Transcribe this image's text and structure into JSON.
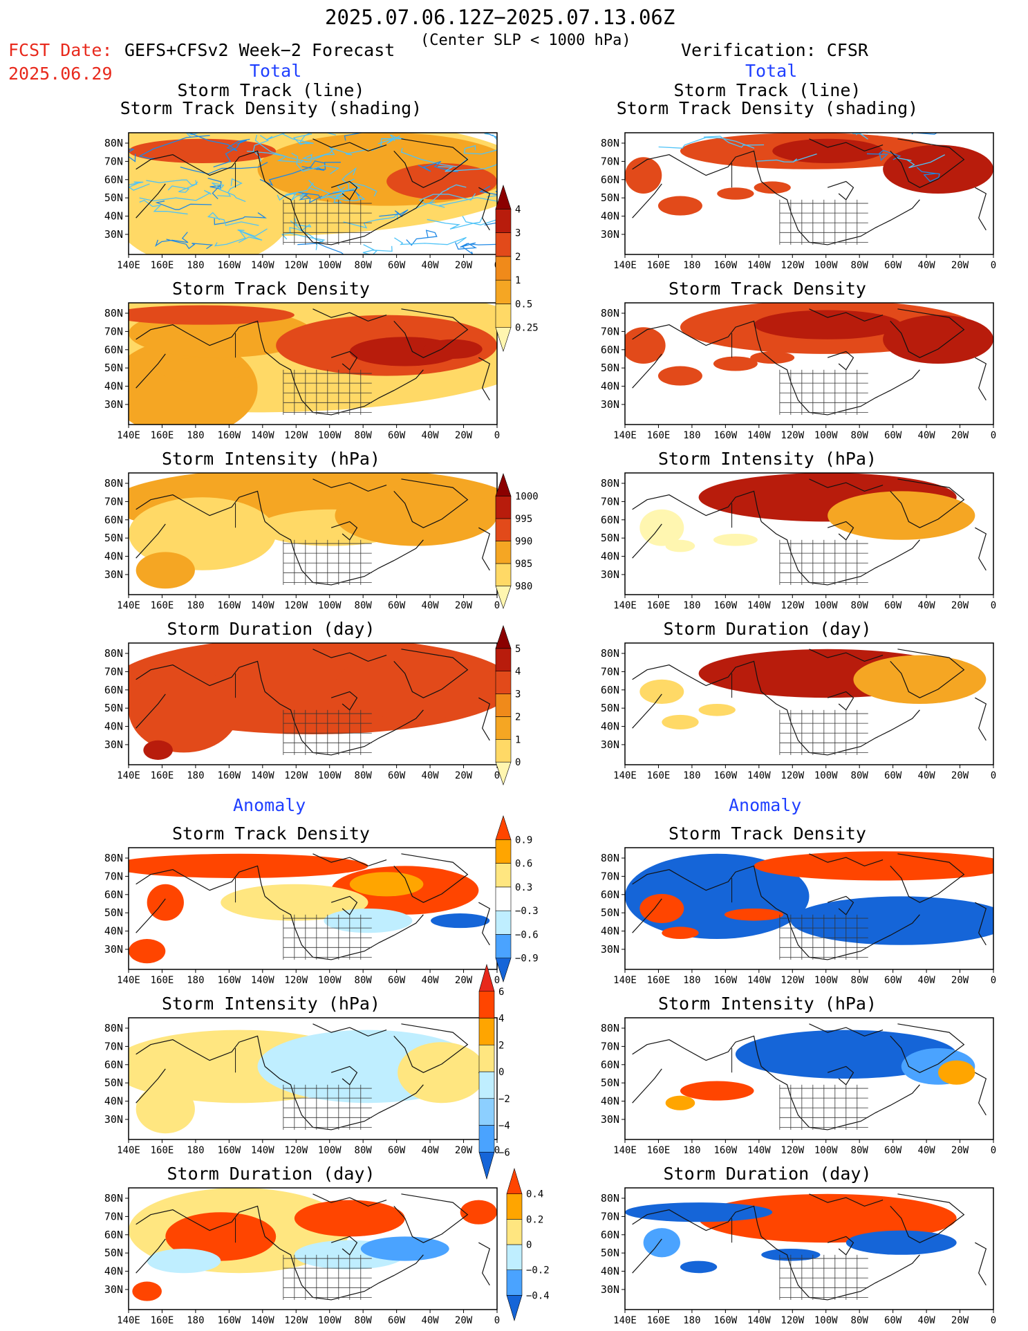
{
  "header": {
    "period": "2025.07.06.12Z−2025.07.13.06Z",
    "fcst_label": "FCST Date:",
    "fcst_date": "2025.06.29",
    "model": "GEFS+CFSv2 Week−2 Forecast",
    "criterion": "(Center SLP < 1000 hPa)",
    "verification": "Verification: CFSR"
  },
  "sections": {
    "total": "Total",
    "anomaly": "Anomaly"
  },
  "axes": {
    "lon_labels": [
      "140E",
      "160E",
      "180",
      "160W",
      "140W",
      "120W",
      "100W",
      "80W",
      "60W",
      "40W",
      "20W",
      "0"
    ],
    "lat_labels": [
      "80N",
      "70N",
      "60N",
      "50N",
      "40N",
      "30N"
    ]
  },
  "panels": {
    "left": [
      {
        "title": "Storm Track (line)\nStorm Track Density (shading)"
      },
      {
        "title": "Storm Track Density"
      },
      {
        "title": "Storm Intensity (hPa)"
      },
      {
        "title": "Storm Duration (day)"
      },
      {
        "title": "Storm Track Density"
      },
      {
        "title": "Storm Intensity (hPa)"
      },
      {
        "title": "Storm Duration (day)"
      }
    ],
    "right": [
      {
        "title": "Storm Track (line)\nStorm Track Density (shading)"
      },
      {
        "title": "Storm Track Density"
      },
      {
        "title": "Storm Intensity (hPa)"
      },
      {
        "title": "Storm Duration (day)"
      },
      {
        "title": "Storm Track Density"
      },
      {
        "title": "Storm Intensity (hPa)"
      },
      {
        "title": "Storm Duration (day)"
      }
    ]
  },
  "colorbars": [
    {
      "name": "density-total",
      "labels": [
        "4",
        "3",
        "2",
        "1",
        "0.5",
        "0.25"
      ],
      "colors": [
        "#fff6b0",
        "#ffd966",
        "#f5a623",
        "#f08a1a",
        "#e24a1a",
        "#b81c0c",
        "#8b0000"
      ]
    },
    {
      "name": "intensity-total",
      "labels": [
        "1000",
        "995",
        "990",
        "985",
        "980"
      ],
      "colors": [
        "#fff6b0",
        "#ffd966",
        "#f5a623",
        "#e24a1a",
        "#b81c0c",
        "#8b0000"
      ]
    },
    {
      "name": "duration-total",
      "labels": [
        "5",
        "4",
        "3",
        "2",
        "1",
        "0"
      ],
      "colors": [
        "#fff6b0",
        "#ffd966",
        "#f5a623",
        "#f08a1a",
        "#e24a1a",
        "#b81c0c",
        "#8b0000"
      ]
    },
    {
      "name": "density-anom",
      "labels": [
        "0.9",
        "0.6",
        "0.3",
        "−0.3",
        "−0.6",
        "−0.9"
      ],
      "colors": [
        "#1565d8",
        "#4aa3ff",
        "#bfeeff",
        "#ffffff",
        "#ffe680",
        "#ffa500",
        "#ff4500"
      ]
    },
    {
      "name": "intensity-anom",
      "labels": [
        "6",
        "4",
        "2",
        "0",
        "−2",
        "−4",
        "−6"
      ],
      "colors": [
        "#1565d8",
        "#4aa3ff",
        "#8ccfff",
        "#bfeeff",
        "#ffe680",
        "#ffa500",
        "#ff4500",
        "#e8291c"
      ]
    },
    {
      "name": "duration-anom",
      "labels": [
        "0.4",
        "0.2",
        "0",
        "−0.2",
        "−0.4"
      ],
      "colors": [
        "#1565d8",
        "#4aa3ff",
        "#bfeeff",
        "#ffe680",
        "#ffa500",
        "#ff4500"
      ]
    }
  ]
}
